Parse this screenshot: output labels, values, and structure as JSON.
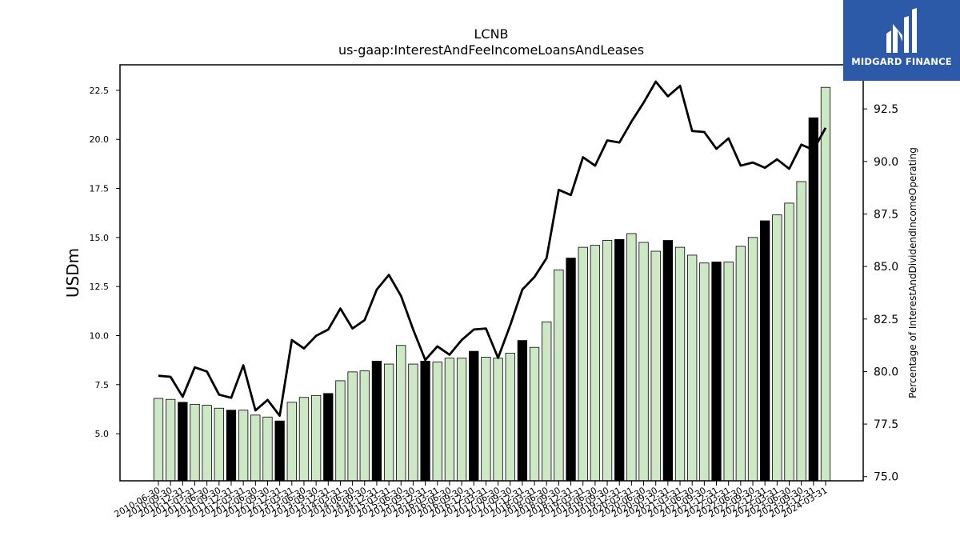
{
  "brand": {
    "name": "MIDGARD FINANCE",
    "color": "#2d5aa8"
  },
  "chart_data": {
    "type": "bar",
    "title": "LCNB",
    "subtitle": "us-gaap:InterestAndFeeIncomeLoansAndLeases",
    "ylabel": "USDm",
    "y2label": "Percentage of InterestAndDividendIncomeOperating",
    "ylim": [
      2.6,
      23.8
    ],
    "y2lim": [
      74.8,
      94.6
    ],
    "yticks": [
      "5.0",
      "7.5",
      "10.0",
      "12.5",
      "15.0",
      "17.5",
      "20.0",
      "22.5"
    ],
    "y2ticks": [
      "75.0",
      "77.5",
      "80.0",
      "82.5",
      "85.0",
      "87.5",
      "90.0",
      "92.5"
    ],
    "grid": false,
    "colors": {
      "bar": "#cde8c5",
      "bar_highlight": "#000000",
      "line": "#000000"
    },
    "categories": [
      "2010-06-30",
      "2010-09-30",
      "2010-12-31",
      "2011-03-31",
      "2011-06-30",
      "2011-09-30",
      "2011-12-31",
      "2012-03-31",
      "2012-06-30",
      "2012-09-30",
      "2012-12-31",
      "2013-03-31",
      "2013-06-30",
      "2013-09-30",
      "2013-12-31",
      "2014-03-31",
      "2014-06-30",
      "2014-09-30",
      "2014-12-31",
      "2015-03-31",
      "2015-06-30",
      "2015-09-30",
      "2015-12-31",
      "2016-03-31",
      "2016-06-30",
      "2016-09-30",
      "2016-12-31",
      "2017-03-31",
      "2017-06-30",
      "2017-09-30",
      "2017-12-31",
      "2018-03-31",
      "2018-06-30",
      "2018-09-30",
      "2018-12-31",
      "2019-03-31",
      "2019-06-30",
      "2019-09-30",
      "2019-12-31",
      "2020-03-31",
      "2020-06-30",
      "2020-09-30",
      "2020-12-31",
      "2021-03-31",
      "2021-06-30",
      "2021-09-30",
      "2021-12-31",
      "2022-03-31",
      "2022-06-30",
      "2022-09-30",
      "2022-12-31",
      "2023-03-31",
      "2023-06-30",
      "2023-09-30",
      "2023-12-31",
      "2024-03-31"
    ],
    "series": [
      {
        "kind": "bar",
        "values": [
          6.8,
          6.75,
          6.6,
          6.5,
          6.45,
          6.3,
          6.2,
          6.2,
          5.95,
          5.85,
          5.65,
          6.6,
          6.85,
          6.95,
          7.05,
          7.7,
          8.15,
          8.2,
          8.7,
          8.55,
          9.5,
          8.55,
          8.7,
          8.65,
          8.85,
          8.85,
          9.2,
          8.9,
          8.85,
          9.1,
          9.75,
          9.4,
          10.7,
          13.35,
          13.95,
          14.5,
          14.6,
          14.85,
          14.9,
          15.2,
          14.75,
          14.3,
          14.85,
          14.5,
          14.1,
          13.7,
          13.75,
          13.75,
          14.55,
          15.0,
          15.85,
          16.15,
          16.75,
          17.85,
          21.1,
          22.65
        ],
        "highlight": [
          false,
          false,
          true,
          false,
          false,
          false,
          true,
          false,
          false,
          false,
          true,
          false,
          false,
          false,
          true,
          false,
          false,
          false,
          true,
          false,
          false,
          false,
          true,
          false,
          false,
          false,
          true,
          false,
          false,
          false,
          true,
          false,
          false,
          false,
          true,
          false,
          false,
          false,
          true,
          false,
          false,
          false,
          true,
          false,
          false,
          false,
          true,
          false,
          false,
          false,
          true,
          false,
          false,
          false,
          true,
          false
        ]
      },
      {
        "kind": "line",
        "axis": "right",
        "values": [
          79.8,
          79.75,
          78.8,
          80.2,
          80.0,
          78.9,
          78.75,
          80.3,
          78.15,
          78.65,
          77.9,
          81.5,
          81.1,
          81.7,
          82.0,
          83.0,
          82.05,
          82.45,
          83.9,
          84.6,
          83.6,
          82.0,
          80.55,
          81.2,
          80.8,
          81.5,
          82.0,
          82.05,
          80.65,
          82.2,
          83.9,
          84.5,
          85.4,
          88.65,
          88.4,
          90.2,
          89.8,
          91.0,
          90.9,
          91.9,
          92.8,
          93.8,
          93.1,
          93.6,
          91.45,
          91.4,
          90.6,
          91.1,
          89.8,
          89.95,
          89.7,
          90.1,
          89.65,
          90.8,
          90.55,
          91.6
        ]
      }
    ]
  }
}
